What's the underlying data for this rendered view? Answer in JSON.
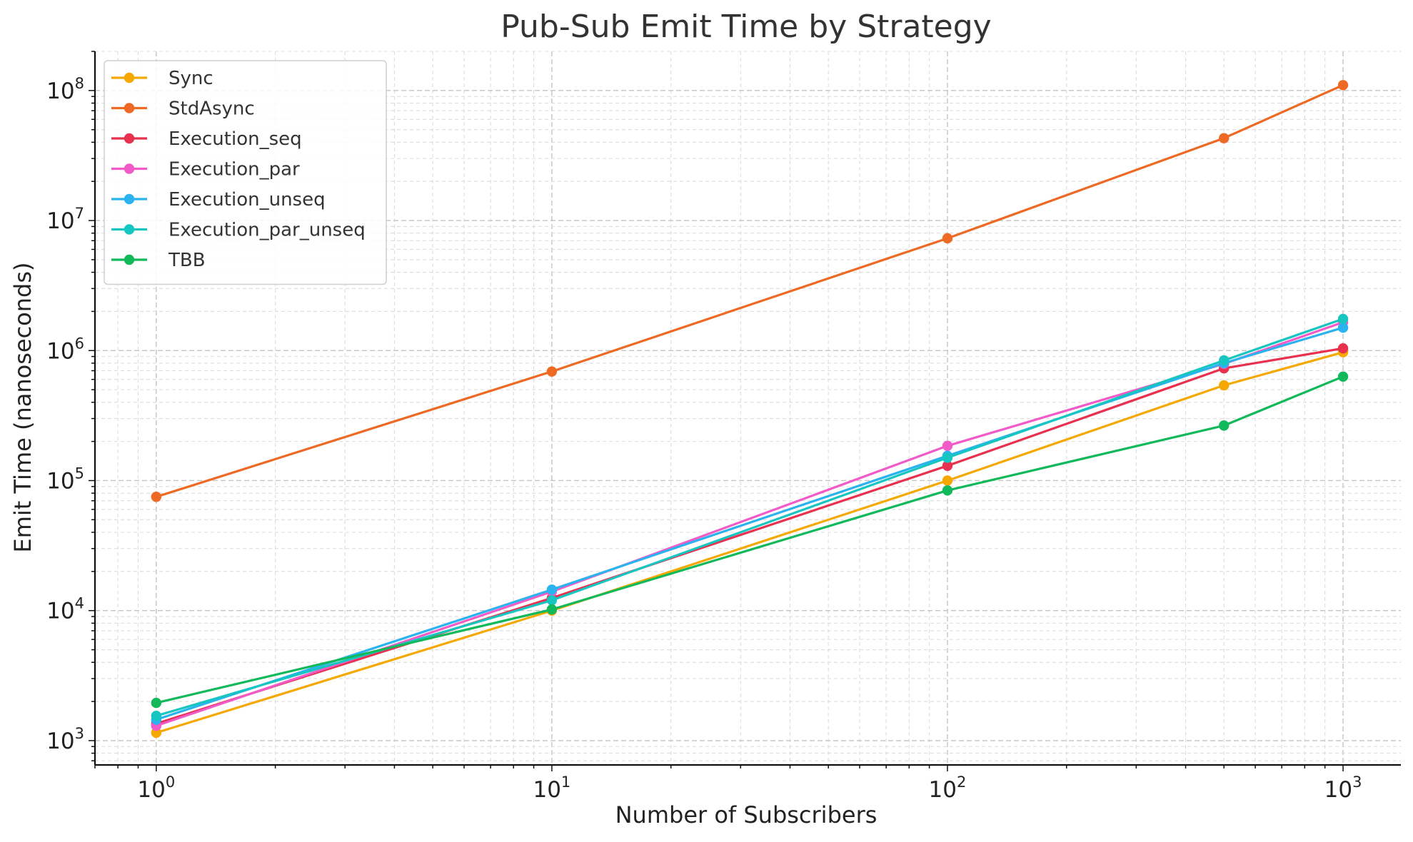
{
  "chart_data": {
    "type": "line",
    "title": "Pub-Sub Emit Time by Strategy",
    "xlabel": "Number of Subscribers",
    "ylabel": "Emit Time (nanoseconds)",
    "x_scale": "log",
    "y_scale": "log",
    "xlim": [
      0.7,
      1400
    ],
    "ylim": [
      650,
      200000000
    ],
    "grid": true,
    "legend_position": "top-left",
    "x_ticks": [
      {
        "value": 1,
        "base": "10",
        "exp": "0"
      },
      {
        "value": 10,
        "base": "10",
        "exp": "1"
      },
      {
        "value": 100,
        "base": "10",
        "exp": "2"
      },
      {
        "value": 1000,
        "base": "10",
        "exp": "3"
      }
    ],
    "y_ticks": [
      {
        "value": 1000,
        "base": "10",
        "exp": "3"
      },
      {
        "value": 10000,
        "base": "10",
        "exp": "4"
      },
      {
        "value": 100000,
        "base": "10",
        "exp": "5"
      },
      {
        "value": 1000000,
        "base": "10",
        "exp": "6"
      },
      {
        "value": 10000000,
        "base": "10",
        "exp": "7"
      },
      {
        "value": 100000000,
        "base": "10",
        "exp": "8"
      }
    ],
    "x": [
      1,
      10,
      100,
      500,
      1000
    ],
    "series": [
      {
        "name": "Sync",
        "color": "#F5A800",
        "values": [
          1150,
          10000,
          100000,
          540000,
          970000
        ]
      },
      {
        "name": "StdAsync",
        "color": "#EE6A24",
        "values": [
          75000,
          690000,
          7300000,
          43000000,
          110000000
        ]
      },
      {
        "name": "Execution_seq",
        "color": "#E8304F",
        "values": [
          1350,
          12500,
          130000,
          730000,
          1040000
        ]
      },
      {
        "name": "Execution_par",
        "color": "#F25AC8",
        "values": [
          1300,
          14000,
          185000,
          790000,
          1650000
        ]
      },
      {
        "name": "Execution_unseq",
        "color": "#2AB3EE",
        "values": [
          1450,
          14500,
          155000,
          800000,
          1500000
        ]
      },
      {
        "name": "Execution_par_unseq",
        "color": "#17C6C0",
        "values": [
          1550,
          12000,
          150000,
          840000,
          1750000
        ]
      },
      {
        "name": "TBB",
        "color": "#11B95A",
        "values": [
          1950,
          10200,
          84000,
          265000,
          630000
        ]
      }
    ]
  }
}
